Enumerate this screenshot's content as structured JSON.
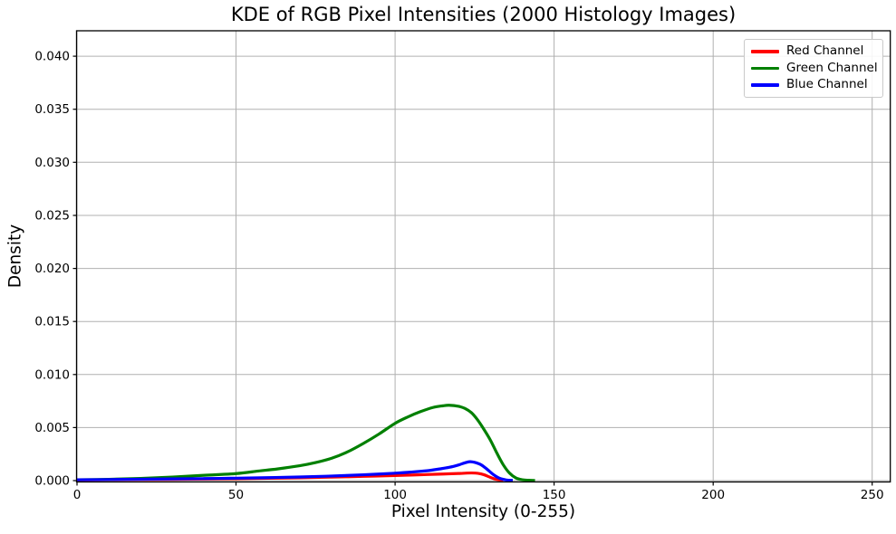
{
  "figure": {
    "background_color": "#ffffff",
    "text_color": "#000000",
    "title": "KDE of RGB Pixel Intensities (2000 Histology Images)"
  },
  "chart_data": {
    "type": "line",
    "title": "KDE of RGB Pixel Intensities (2000 Histology Images)",
    "xlabel": "Pixel Intensity (0-255)",
    "ylabel": "Density",
    "xlim": [
      0,
      255.7
    ],
    "ylim": [
      0,
      0.0424
    ],
    "grid": true,
    "grid_color": "#b0b0b0",
    "spine_color": "#000000",
    "legend_position": "upper right",
    "xticks": {
      "values": [
        0,
        50,
        100,
        150,
        200,
        250
      ],
      "labels": [
        "0",
        "50",
        "100",
        "150",
        "200",
        "250"
      ]
    },
    "yticks": {
      "values": [
        0.0,
        0.005,
        0.01,
        0.015,
        0.02,
        0.025,
        0.03,
        0.035,
        0.04
      ],
      "labels": [
        "0.000",
        "0.005",
        "0.010",
        "0.015",
        "0.020",
        "0.025",
        "0.030",
        "0.035",
        "0.040"
      ]
    },
    "series": [
      {
        "name": "Red Channel",
        "color": "#ff0000",
        "linewidth": 3.2,
        "peak": {
          "x": 124,
          "density": 0.0007
        },
        "points": [
          [
            0,
            6e-05
          ],
          [
            10,
            8e-05
          ],
          [
            20,
            0.0001
          ],
          [
            30,
            0.00012
          ],
          [
            40,
            0.00015
          ],
          [
            50,
            0.00018
          ],
          [
            60,
            0.00022
          ],
          [
            70,
            0.00027
          ],
          [
            80,
            0.00033
          ],
          [
            90,
            0.0004
          ],
          [
            100,
            0.00048
          ],
          [
            105,
            0.00052
          ],
          [
            110,
            0.00057
          ],
          [
            115,
            0.00062
          ],
          [
            120,
            0.00067
          ],
          [
            122,
            0.0007
          ],
          [
            124,
            0.00072
          ],
          [
            126,
            0.00069
          ],
          [
            128,
            0.00055
          ],
          [
            130,
            0.0003
          ],
          [
            132,
            0.0001
          ],
          [
            134,
            2e-05
          ]
        ]
      },
      {
        "name": "Green Channel",
        "color": "#008000",
        "linewidth": 3.2,
        "peak": {
          "x": 117,
          "density": 0.0071
        },
        "points": [
          [
            0,
            8e-05
          ],
          [
            10,
            0.00012
          ],
          [
            20,
            0.0002
          ],
          [
            30,
            0.00033
          ],
          [
            40,
            0.0005
          ],
          [
            50,
            0.00066
          ],
          [
            57,
            0.0009
          ],
          [
            63,
            0.0011
          ],
          [
            70,
            0.0014
          ],
          [
            75,
            0.0017
          ],
          [
            80,
            0.0021
          ],
          [
            85,
            0.0027
          ],
          [
            90,
            0.0035
          ],
          [
            95,
            0.0044
          ],
          [
            100,
            0.0054
          ],
          [
            104,
            0.006
          ],
          [
            108,
            0.0065
          ],
          [
            112,
            0.0069
          ],
          [
            115,
            0.00705
          ],
          [
            117,
            0.0071
          ],
          [
            120,
            0.007
          ],
          [
            122,
            0.0068
          ],
          [
            124,
            0.0064
          ],
          [
            126,
            0.0057
          ],
          [
            128,
            0.0048
          ],
          [
            130,
            0.0038
          ],
          [
            132,
            0.0026
          ],
          [
            134,
            0.0015
          ],
          [
            136,
            0.0007
          ],
          [
            138,
            0.00025
          ],
          [
            140,
            8e-05
          ],
          [
            142,
            3e-05
          ],
          [
            144,
            1e-05
          ]
        ]
      },
      {
        "name": "Blue Channel",
        "color": "#0000ff",
        "linewidth": 3.2,
        "peak": {
          "x": 123,
          "density": 0.0018
        },
        "points": [
          [
            0,
            8e-05
          ],
          [
            10,
            0.0001
          ],
          [
            20,
            0.00013
          ],
          [
            30,
            0.00016
          ],
          [
            40,
            0.00019
          ],
          [
            50,
            0.00023
          ],
          [
            60,
            0.00028
          ],
          [
            70,
            0.00034
          ],
          [
            80,
            0.00043
          ],
          [
            90,
            0.00055
          ],
          [
            95,
            0.00062
          ],
          [
            100,
            0.0007
          ],
          [
            105,
            0.0008
          ],
          [
            110,
            0.00093
          ],
          [
            114,
            0.0011
          ],
          [
            117,
            0.00125
          ],
          [
            120,
            0.00148
          ],
          [
            122,
            0.00168
          ],
          [
            123.5,
            0.00178
          ],
          [
            125,
            0.00172
          ],
          [
            127,
            0.0015
          ],
          [
            129,
            0.00105
          ],
          [
            131,
            0.00055
          ],
          [
            133,
            0.0002
          ],
          [
            135,
            6e-05
          ],
          [
            137,
            2e-05
          ]
        ]
      }
    ]
  },
  "legend": {
    "items": [
      {
        "label": "Red Channel"
      },
      {
        "label": "Green Channel"
      },
      {
        "label": "Blue Channel"
      }
    ]
  }
}
